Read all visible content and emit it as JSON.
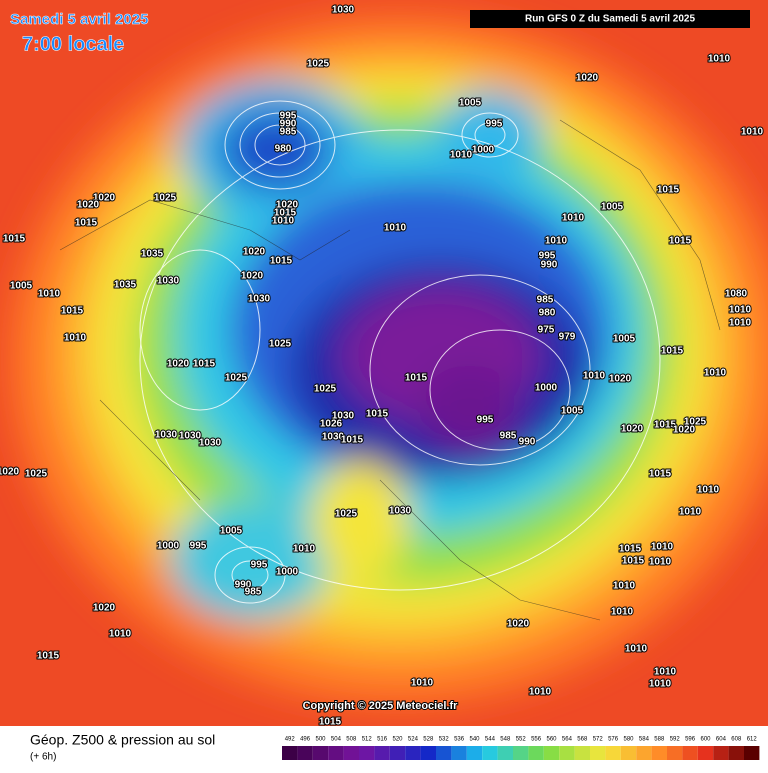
{
  "header": {
    "date": "Samedi 5 avril 2025",
    "time": "7:00 locale",
    "run": "Run GFS 0 Z du Samedi 5 avril 2025"
  },
  "copyright": "Copyright © 2025 Meteociel.fr",
  "footer": {
    "title": "Géop. Z500 & pression au sol",
    "lead": "(+ 6h)"
  },
  "legend": {
    "labels": [
      "492",
      "496",
      "500",
      "504",
      "508",
      "512",
      "516",
      "520",
      "524",
      "528",
      "532",
      "536",
      "540",
      "544",
      "548",
      "552",
      "556",
      "560",
      "564",
      "568",
      "572",
      "576",
      "580",
      "584",
      "588",
      "592",
      "596",
      "600",
      "604",
      "608",
      "612"
    ]
  },
  "isobar_labels": [
    "1030",
    "1025",
    "1020",
    "1010",
    "1010",
    "1005",
    "995",
    "1000",
    "1010",
    "995",
    "990",
    "985",
    "980",
    "1025",
    "1020",
    "1020",
    "1015",
    "1020",
    "1015",
    "1010",
    "1010",
    "1010",
    "1005",
    "1015",
    "1010",
    "1015",
    "1035",
    "1030",
    "1035",
    "1020",
    "1020",
    "1015",
    "1030",
    "1015",
    "1005",
    "1010",
    "1015",
    "1010",
    "995",
    "990",
    "985",
    "980",
    "975",
    "979",
    "1080",
    "1010",
    "1010",
    "1005",
    "1015",
    "1025",
    "1020",
    "1015",
    "1025",
    "1025",
    "1015",
    "1000",
    "1010",
    "1020",
    "1010",
    "1005",
    "995",
    "985",
    "990",
    "1030",
    "1026",
    "1015",
    "1030",
    "1015",
    "1030",
    "1030",
    "1030",
    "1020",
    "1015",
    "1025",
    "1020",
    "1015",
    "1010",
    "1010",
    "1020",
    "1025",
    "1025",
    "1030",
    "1005",
    "1000",
    "995",
    "1010",
    "995",
    "1000",
    "990",
    "985",
    "1015",
    "1010",
    "1015",
    "1010",
    "1010",
    "1020",
    "1010",
    "1010",
    "1020",
    "1015",
    "1010",
    "1010",
    "1010",
    "1010",
    "1010",
    "1015"
  ]
}
